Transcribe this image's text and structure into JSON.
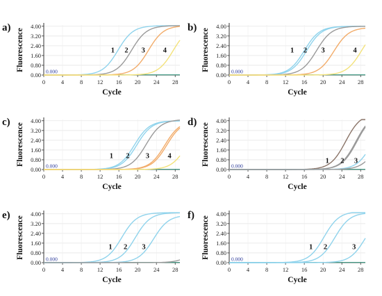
{
  "colors": {
    "blue": "#8fd3ec",
    "grey": "#9a9a9a",
    "orange": "#f2ac6a",
    "yellow": "#f3e27a",
    "brown": "#8a7468",
    "baseline": "#4a9e8a",
    "threshold": "#2b3a9a"
  },
  "chart_data": [
    {
      "panel": "a)",
      "type": "line",
      "xlabel": "Cycle",
      "ylabel": "Fluorescence",
      "xlim": [
        0,
        29
      ],
      "ylim": [
        0,
        4.1
      ],
      "xticks": [
        "0",
        "4",
        "8",
        "12",
        "16",
        "20",
        "24",
        "28"
      ],
      "yticks": [
        "0.00",
        "0.80",
        "1.60",
        "2.40",
        "3.20",
        "4.00"
      ],
      "threshold_label": "0.000",
      "curves": [
        {
          "label": "1",
          "color": "blue",
          "ct": 15.8,
          "max": 4.05
        },
        {
          "label": "2",
          "color": "grey",
          "ct": 18.7,
          "max": 4.05
        },
        {
          "label": "3",
          "color": "orange",
          "ct": 22.3,
          "max": 4.05
        },
        {
          "label": "4",
          "color": "yellow",
          "ct": 27.6,
          "max": 4.05
        }
      ],
      "curve_labels": [
        {
          "text": "1",
          "x": 14.7,
          "y": 1.85
        },
        {
          "text": "2",
          "x": 17.6,
          "y": 1.85
        },
        {
          "text": "3",
          "x": 21.2,
          "y": 1.85
        },
        {
          "text": "4",
          "x": 25.8,
          "y": 1.85
        }
      ]
    },
    {
      "panel": "b)",
      "type": "line",
      "xlabel": "Cycle",
      "ylabel": "Fluorescence",
      "xlim": [
        0,
        29
      ],
      "ylim": [
        0,
        4.1
      ],
      "xticks": [
        "0",
        "4",
        "8",
        "12",
        "16",
        "20",
        "24",
        "28"
      ],
      "yticks": [
        "0.00",
        "0.80",
        "1.60",
        "2.40",
        "3.20",
        "4.00"
      ],
      "threshold_label": "0.000",
      "curves": [
        {
          "label": "1",
          "color": "blue",
          "ct": 16.0,
          "max": 4.0
        },
        {
          "label": "1",
          "color": "blue",
          "ct": 16.5,
          "max": 4.0
        },
        {
          "label": "2",
          "color": "grey",
          "ct": 18.6,
          "max": 4.0
        },
        {
          "label": "3",
          "color": "orange",
          "ct": 22.3,
          "max": 3.9
        },
        {
          "label": "4",
          "color": "yellow",
          "ct": 28.2,
          "max": 4.0
        }
      ],
      "curve_labels": [
        {
          "text": "1",
          "x": 13.4,
          "y": 1.85
        },
        {
          "text": "2",
          "x": 16.2,
          "y": 1.85
        },
        {
          "text": "3",
          "x": 20.0,
          "y": 1.85
        },
        {
          "text": "4",
          "x": 26.8,
          "y": 1.85
        }
      ]
    },
    {
      "panel": "c)",
      "type": "line",
      "xlabel": "Cycle",
      "ylabel": "Fluorescence",
      "xlim": [
        0,
        29
      ],
      "ylim": [
        0,
        4.1
      ],
      "xticks": [
        "0",
        "4",
        "8",
        "12",
        "16",
        "20",
        "24",
        "28"
      ],
      "yticks": [
        "0.00",
        "0.80",
        "1.60",
        "2.40",
        "3.20",
        "4.00"
      ],
      "threshold_label": "0.000",
      "curves": [
        {
          "label": "1",
          "color": "blue",
          "ct": 19.3,
          "max": 4.0
        },
        {
          "label": "1",
          "color": "blue",
          "ct": 19.8,
          "max": 4.0
        },
        {
          "label": "2",
          "color": "grey",
          "ct": 21.8,
          "max": 4.1
        },
        {
          "label": "3",
          "color": "orange",
          "ct": 25.8,
          "max": 4.0
        },
        {
          "label": "3",
          "color": "orange",
          "ct": 26.2,
          "max": 4.0
        },
        {
          "label": "4",
          "color": "yellow",
          "ct": 30.5,
          "max": 4.0
        }
      ],
      "curve_labels": [
        {
          "text": "1",
          "x": 14.4,
          "y": 0.95
        },
        {
          "text": "2",
          "x": 17.9,
          "y": 0.95
        },
        {
          "text": "3",
          "x": 22.1,
          "y": 0.95
        },
        {
          "text": "4",
          "x": 26.8,
          "y": 0.95
        }
      ]
    },
    {
      "panel": "d)",
      "type": "line",
      "xlabel": "Cycle",
      "ylabel": "Fluorescence",
      "xlim": [
        0,
        29
      ],
      "ylim": [
        0,
        4.1
      ],
      "xticks": [
        "0",
        "4",
        "8",
        "12",
        "16",
        "20",
        "24",
        "28"
      ],
      "yticks": [
        "0.00",
        "0.80",
        "1.60",
        "2.40",
        "3.20",
        "4.00"
      ],
      "threshold_label": "0.000",
      "curves": [
        {
          "label": "1",
          "color": "brown",
          "ct": 24.8,
          "max": 4.6
        },
        {
          "label": "2",
          "color": "grey",
          "ct": 27.0,
          "max": 4.6
        },
        {
          "label": "2",
          "color": "grey",
          "ct": 27.2,
          "max": 4.6
        },
        {
          "label": "3",
          "color": "blue",
          "ct": 30.6,
          "max": 4.6
        },
        {
          "label": "3",
          "color": "grey",
          "ct": 31.9,
          "max": 4.6
        }
      ],
      "curve_labels": [
        {
          "text": "1",
          "x": 20.9,
          "y": 0.55
        },
        {
          "text": "2",
          "x": 24.1,
          "y": 0.55
        },
        {
          "text": "3",
          "x": 27.0,
          "y": 0.55
        }
      ]
    },
    {
      "panel": "e)",
      "type": "line",
      "xlabel": "Cycle",
      "ylabel": "Fluorescence",
      "xlim": [
        0,
        29
      ],
      "ylim": [
        0,
        4.1
      ],
      "xticks": [
        "0",
        "4",
        "8",
        "12",
        "16",
        "20",
        "24",
        "28"
      ],
      "yticks": [
        "0.00",
        "0.80",
        "1.60",
        "2.40",
        "3.20",
        "4.00"
      ],
      "threshold_label": "0.000",
      "curves": [
        {
          "label": "1",
          "color": "blue",
          "ct": 16.6,
          "max": 4.1
        },
        {
          "label": "2",
          "color": "blue",
          "ct": 19.5,
          "max": 4.1
        },
        {
          "label": "3",
          "color": "blue",
          "ct": 23.4,
          "max": 3.9
        },
        {
          "label": "",
          "color": "grey",
          "ct": 33.5,
          "max": 4.0
        }
      ],
      "curve_labels": [
        {
          "text": "1",
          "x": 14.2,
          "y": 1.1
        },
        {
          "text": "2",
          "x": 17.4,
          "y": 1.1
        },
        {
          "text": "3",
          "x": 21.3,
          "y": 1.1
        }
      ]
    },
    {
      "panel": "f)",
      "type": "line",
      "xlabel": "Cycle",
      "ylabel": "Fluorescence",
      "xlim": [
        0,
        29
      ],
      "ylim": [
        0,
        4.1
      ],
      "xticks": [
        "0",
        "4",
        "8",
        "12",
        "16",
        "20",
        "24",
        "28"
      ],
      "yticks": [
        "0.00",
        "0.80",
        "1.60",
        "2.40",
        "3.20",
        "4.00"
      ],
      "threshold_label": "0.000",
      "curves": [
        {
          "label": "1",
          "color": "blue",
          "ct": 20.2,
          "max": 4.2
        },
        {
          "label": "2",
          "color": "blue",
          "ct": 22.5,
          "max": 4.1
        },
        {
          "label": "3",
          "color": "blue",
          "ct": 29.0,
          "max": 4.0
        }
      ],
      "curve_labels": [
        {
          "text": "1",
          "x": 17.4,
          "y": 1.1
        },
        {
          "text": "2",
          "x": 20.5,
          "y": 1.1
        },
        {
          "text": "3",
          "x": 26.6,
          "y": 1.1
        }
      ]
    }
  ]
}
